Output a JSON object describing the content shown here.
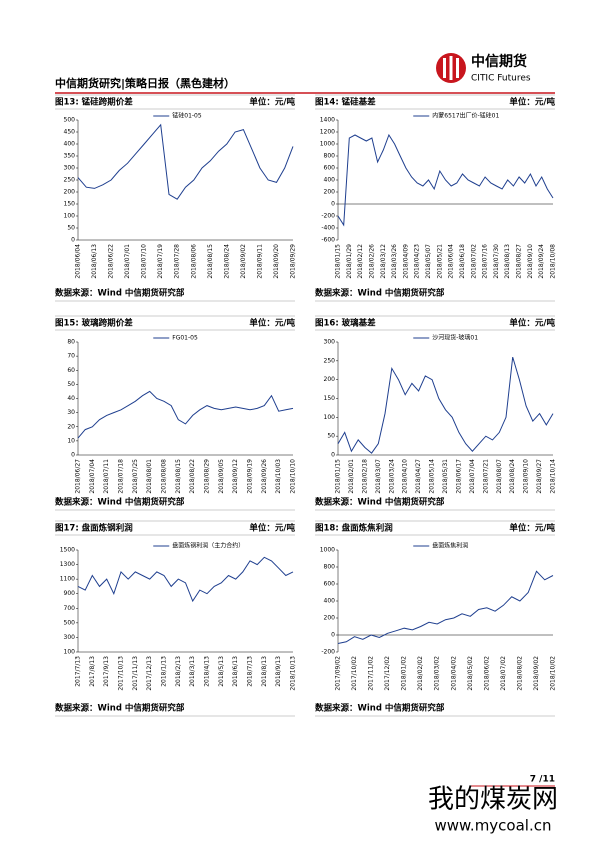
{
  "header": {
    "title": "中信期货研究|策略日报（黑色建材）",
    "logo_cn": "中信期货",
    "logo_en": "CITIC Futures"
  },
  "figures": [
    {
      "label": "图13: 锰硅跨期价差",
      "unit": "单位：元/吨",
      "source": "数据来源：Wind  中信期货研究部"
    },
    {
      "label": "图14: 锰硅基差",
      "unit": "单位：元/吨",
      "source": "数据来源：Wind  中信期货研究部"
    },
    {
      "label": "图15: 玻璃跨期价差",
      "unit": "单位：元/吨",
      "source": "数据来源：Wind  中信期货研究部"
    },
    {
      "label": "图16: 玻璃基差",
      "unit": "单位：元/吨",
      "source": "数据来源：Wind  中信期货研究部"
    },
    {
      "label": "图17: 盘面炼钢利润",
      "unit": "单位：元/吨",
      "source": "数据来源：Wind  中信期货研究部"
    },
    {
      "label": "图18: 盘面炼焦利润",
      "unit": "单位：元/吨",
      "source": "数据来源：Wind  中信期货研究部"
    }
  ],
  "chart_data": [
    {
      "type": "line",
      "categories": [
        "2018/06/04",
        null,
        "2018/06/13",
        null,
        "2018/06/22",
        null,
        "2018/07/01",
        null,
        "2018/07/10",
        null,
        "2018/07/19",
        null,
        "2018/07/28",
        null,
        "2018/08/06",
        null,
        "2018/08/15",
        null,
        "2018/08/24",
        null,
        "2018/09/02",
        null,
        "2018/09/11",
        null,
        "2018/09/20",
        null,
        "2018/09/29"
      ],
      "series": [
        {
          "name": "锰硅01-05",
          "color": "#1f3f8f",
          "values": [
            260,
            220,
            215,
            230,
            250,
            290,
            320,
            360,
            400,
            440,
            480,
            190,
            170,
            220,
            250,
            300,
            330,
            370,
            400,
            450,
            460,
            380,
            300,
            250,
            240,
            300,
            390
          ]
        }
      ],
      "ylim": [
        0,
        500
      ],
      "yticks": [
        0,
        50,
        100,
        150,
        200,
        250,
        300,
        350,
        400,
        450,
        500
      ]
    },
    {
      "type": "line",
      "categories": [
        "2018/01/15",
        null,
        "2018/01/29",
        null,
        "2018/02/12",
        null,
        "2018/02/26",
        null,
        "2018/03/12",
        null,
        "2018/03/26",
        null,
        "2018/04/09",
        null,
        "2018/04/23",
        null,
        "2018/05/07",
        null,
        "2018/05/21",
        null,
        "2018/06/04",
        null,
        "2018/06/18",
        null,
        "2018/07/02",
        null,
        "2018/07/16",
        null,
        "2018/07/30",
        null,
        "2018/08/13",
        null,
        "2018/08/27",
        null,
        "2018/09/10",
        null,
        "2018/09/24",
        null,
        "2018/10/08"
      ],
      "series": [
        {
          "name": "内蒙6517出厂价-锰硅01",
          "color": "#1f3f8f",
          "values": [
            -200,
            -350,
            1100,
            1150,
            1100,
            1050,
            1100,
            700,
            900,
            1150,
            1000,
            800,
            600,
            450,
            350,
            300,
            400,
            250,
            550,
            400,
            300,
            350,
            500,
            400,
            350,
            300,
            450,
            350,
            300,
            250,
            400,
            300,
            450,
            350,
            500,
            300,
            450,
            250,
            100
          ]
        }
      ],
      "ylim": [
        -600,
        1400
      ],
      "yticks": [
        -600,
        -400,
        -200,
        0,
        200,
        400,
        600,
        800,
        1000,
        1200,
        1400
      ]
    },
    {
      "type": "line",
      "categories": [
        "2018/06/27",
        null,
        "2018/07/04",
        null,
        "2018/07/11",
        null,
        "2018/07/18",
        null,
        "2018/07/25",
        null,
        "2018/08/01",
        null,
        "2018/08/08",
        null,
        "2018/08/15",
        null,
        "2018/08/22",
        null,
        "2018/08/29",
        null,
        "2018/09/05",
        null,
        "2018/09/12",
        null,
        "2018/09/19",
        null,
        "2018/09/26",
        null,
        "2018/10/03",
        null,
        "2018/10/10"
      ],
      "series": [
        {
          "name": "FG01-05",
          "color": "#1f3f8f",
          "values": [
            12,
            18,
            20,
            25,
            28,
            30,
            32,
            35,
            38,
            42,
            45,
            40,
            38,
            35,
            25,
            22,
            28,
            32,
            35,
            33,
            32,
            33,
            34,
            33,
            32,
            33,
            35,
            42,
            31,
            32,
            33
          ]
        }
      ],
      "ylim": [
        0,
        80
      ],
      "yticks": [
        0,
        10,
        20,
        30,
        40,
        50,
        60,
        70,
        80
      ]
    },
    {
      "type": "line",
      "categories": [
        "2018/01/15",
        null,
        "2018/02/01",
        null,
        "2018/02/18",
        null,
        "2018/03/07",
        null,
        "2018/03/24",
        null,
        "2018/04/10",
        null,
        "2018/04/27",
        null,
        "2018/05/14",
        null,
        "2018/05/31",
        null,
        "2018/06/17",
        null,
        "2018/07/04",
        null,
        "2018/07/21",
        null,
        "2018/08/07",
        null,
        "2018/08/24",
        null,
        "2018/09/10",
        null,
        "2018/09/27",
        null,
        "2018/10/14"
      ],
      "series": [
        {
          "name": "沙河现货-玻璃01",
          "color": "#1f3f8f",
          "values": [
            30,
            60,
            10,
            40,
            20,
            5,
            30,
            110,
            230,
            200,
            160,
            190,
            170,
            210,
            200,
            150,
            120,
            100,
            60,
            30,
            10,
            30,
            50,
            40,
            60,
            100,
            260,
            200,
            130,
            90,
            110,
            80,
            110
          ]
        }
      ],
      "ylim": [
        0,
        300
      ],
      "yticks": [
        0,
        50,
        100,
        150,
        200,
        250,
        300
      ]
    },
    {
      "type": "line",
      "categories": [
        "2017/7/13",
        null,
        "2017/8/13",
        null,
        "2017/9/13",
        null,
        "2017/10/13",
        null,
        "2017/11/13",
        null,
        "2017/12/13",
        null,
        "2018/1/13",
        null,
        "2018/2/13",
        null,
        "2018/3/13",
        null,
        "2018/4/13",
        null,
        "2018/5/13",
        null,
        "2018/6/13",
        null,
        "2018/7/13",
        null,
        "2018/8/13",
        null,
        "2018/9/13",
        null,
        "2018/10/13"
      ],
      "series": [
        {
          "name": "盘面炼钢利润（主力合约）",
          "color": "#1f3f8f",
          "values": [
            1000,
            950,
            1150,
            1000,
            1100,
            900,
            1200,
            1100,
            1200,
            1150,
            1100,
            1200,
            1150,
            1000,
            1100,
            1050,
            800,
            950,
            900,
            1000,
            1050,
            1150,
            1100,
            1200,
            1350,
            1300,
            1400,
            1350,
            1250,
            1150,
            1200
          ]
        }
      ],
      "ylim": [
        100,
        1500
      ],
      "yticks": [
        100,
        300,
        500,
        700,
        900,
        1100,
        1300,
        1500
      ]
    },
    {
      "type": "line",
      "categories": [
        "2017/09/02",
        null,
        "2017/10/02",
        null,
        "2017/11/02",
        null,
        "2017/12/02",
        null,
        "2018/01/02",
        null,
        "2018/02/02",
        null,
        "2018/03/02",
        null,
        "2018/04/02",
        null,
        "2018/05/02",
        null,
        "2018/06/02",
        null,
        "2018/07/02",
        null,
        "2018/08/02",
        null,
        "2018/09/02",
        null,
        "2018/10/02"
      ],
      "series": [
        {
          "name": "盘面炼焦利润",
          "color": "#1f3f8f",
          "values": [
            -100,
            -80,
            -20,
            -50,
            0,
            -30,
            20,
            50,
            80,
            60,
            100,
            150,
            130,
            180,
            200,
            250,
            220,
            300,
            320,
            280,
            350,
            450,
            400,
            500,
            750,
            650,
            700
          ]
        }
      ],
      "ylim": [
        -200,
        1000
      ],
      "yticks": [
        -200,
        0,
        200,
        400,
        600,
        800,
        1000
      ]
    }
  ],
  "footer": {
    "page": "7 /11"
  },
  "watermark": {
    "cn": "我的煤炭网",
    "url": "www.mycoal.cn"
  }
}
